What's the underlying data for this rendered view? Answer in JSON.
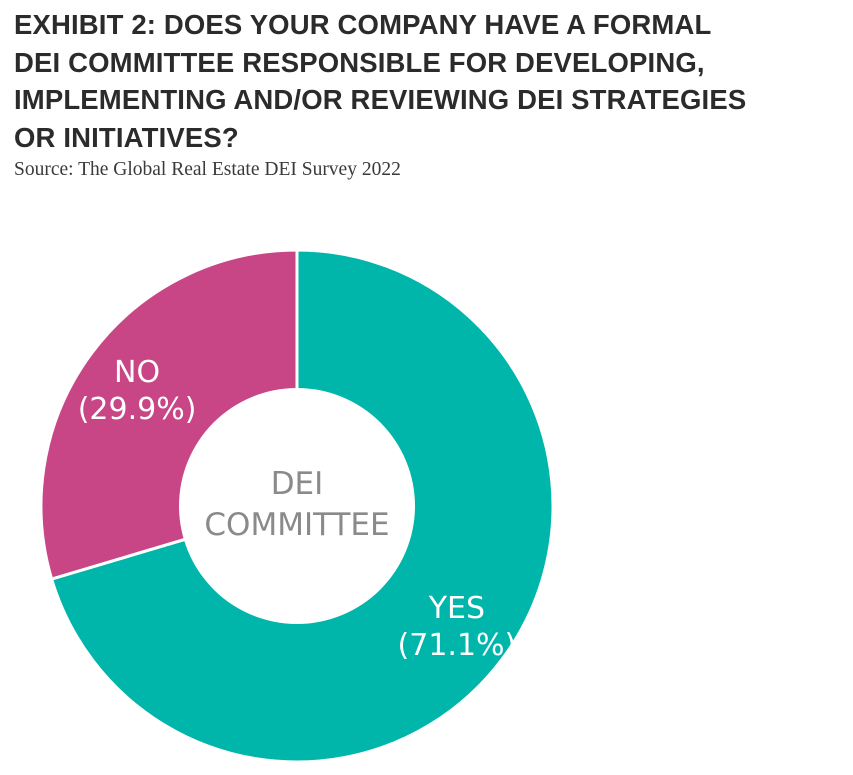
{
  "exhibit": {
    "title": "EXHIBIT 2: DOES YOUR COMPANY HAVE A FORMAL\nDEI COMMITTEE RESPONSIBLE FOR DEVELOPING,\nIMPLEMENTING AND/OR REVIEWING DEI STRATEGIES\nOR INITIATIVES?",
    "source": "Source: The Global Real Estate DEI Survey 2022"
  },
  "chart_data": {
    "type": "pie",
    "donut": true,
    "center_label": [
      "DEI",
      "COMMITTEE"
    ],
    "slices": [
      {
        "label": "YES",
        "value": 71.1,
        "value_label": "(71.1%)",
        "color": "#00b5aa"
      },
      {
        "label": "NO",
        "value": 29.9,
        "value_label": "(29.9%)",
        "color": "#c84686"
      }
    ],
    "colors": {
      "label_text": "#ffffff",
      "center_text": "#8a8a8a",
      "background": "#ffffff"
    }
  }
}
